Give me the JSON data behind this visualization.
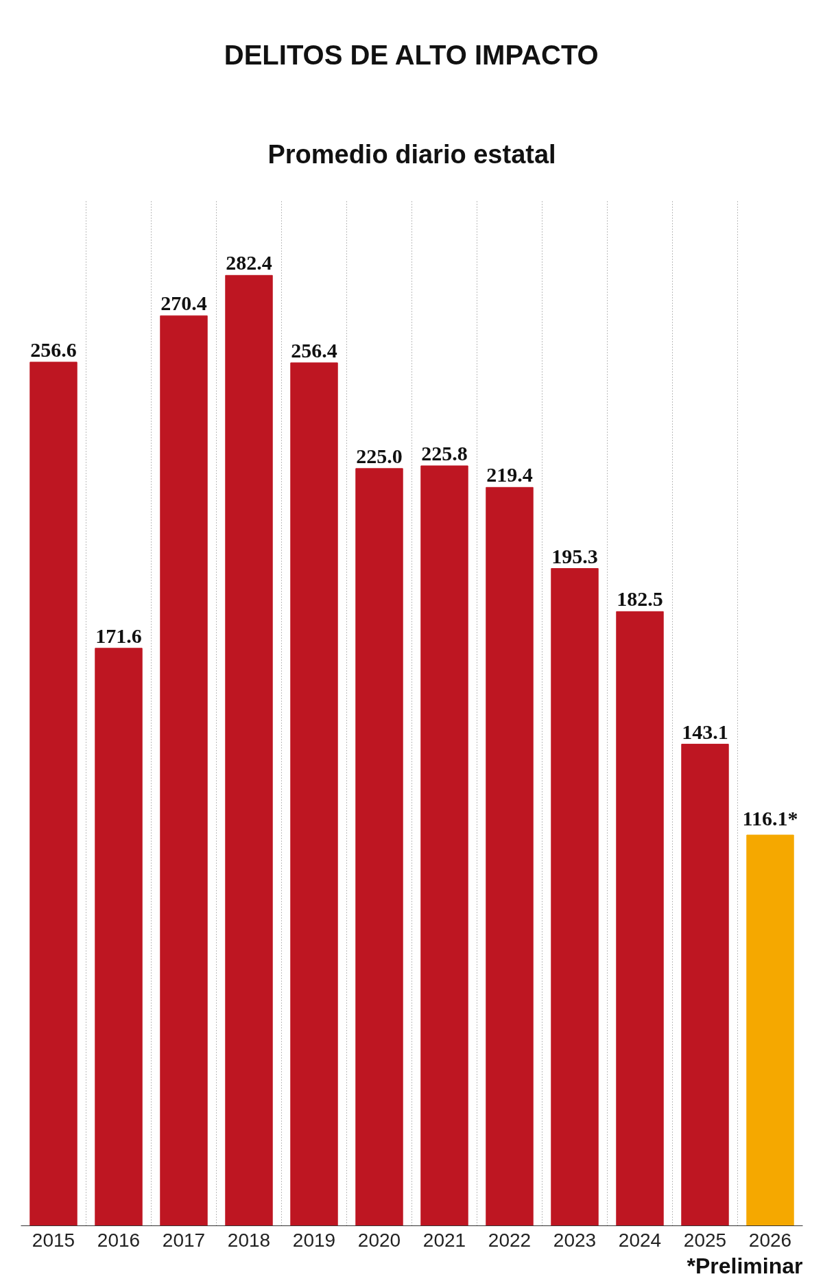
{
  "chart_data": {
    "type": "bar",
    "title": "DELITOS DE ALTO IMPACTO",
    "subtitle": "Promedio diario estatal",
    "categories": [
      "2015",
      "2016",
      "2017",
      "2018",
      "2019",
      "2020",
      "2021",
      "2022",
      "2023",
      "2024",
      "2025",
      "2026"
    ],
    "values": [
      256.6,
      171.6,
      270.4,
      282.4,
      256.4,
      225.0,
      225.8,
      219.4,
      195.3,
      182.5,
      143.1,
      116.1
    ],
    "value_labels": [
      "256.6",
      "171.6",
      "270.4",
      "282.4",
      "256.4",
      "225.0",
      "225.8",
      "219.4",
      "195.3",
      "182.5",
      "143.1",
      "116.1*"
    ],
    "colors": [
      "#be1622",
      "#be1622",
      "#be1622",
      "#be1622",
      "#be1622",
      "#be1622",
      "#be1622",
      "#be1622",
      "#be1622",
      "#be1622",
      "#be1622",
      "#f5a800"
    ],
    "grid": "x",
    "annotations": [
      "*Preliminar"
    ]
  }
}
